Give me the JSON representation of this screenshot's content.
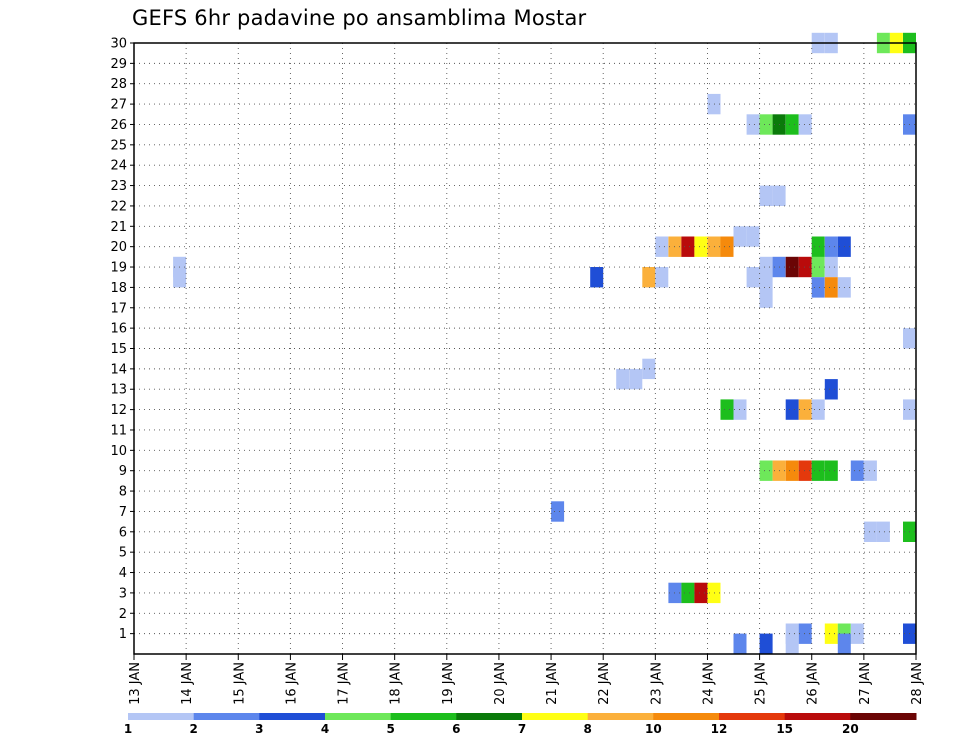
{
  "title": "GEFS 6hr padavine po ansamblima Mostar",
  "chart_data": {
    "type": "heatmap",
    "title": "GEFS 6hr padavine po ansamblima Mostar",
    "x_tick_labels": [
      "13 JAN",
      "14 JAN",
      "15 JAN",
      "16 JAN",
      "17 JAN",
      "18 JAN",
      "19 JAN",
      "20 JAN",
      "21 JAN",
      "22 JAN",
      "23 JAN",
      "24 JAN",
      "25 JAN",
      "26 JAN",
      "27 JAN",
      "28 JAN"
    ],
    "y_tick_labels": [
      "1",
      "2",
      "3",
      "4",
      "5",
      "6",
      "7",
      "8",
      "9",
      "10",
      "11",
      "12",
      "13",
      "14",
      "15",
      "16",
      "17",
      "18",
      "19",
      "20",
      "21",
      "22",
      "23",
      "24",
      "25",
      "26",
      "27",
      "28",
      "29",
      "30"
    ],
    "xlim": [
      "13 JAN 00Z",
      "28 JAN 00Z"
    ],
    "ylim": [
      0,
      30
    ],
    "grid": true,
    "time_step_hours": 6,
    "colorbar": {
      "tick_labels": [
        "1",
        "2",
        "3",
        "4",
        "5",
        "6",
        "7",
        "8",
        "10",
        "12",
        "15",
        "20"
      ],
      "bins": [
        {
          "from": 1,
          "to": 2,
          "color": "#b4c6f5"
        },
        {
          "from": 2,
          "to": 3,
          "color": "#5d86ec"
        },
        {
          "from": 3,
          "to": 4,
          "color": "#1f4ed6"
        },
        {
          "from": 4,
          "to": 5,
          "color": "#6ee85a"
        },
        {
          "from": 5,
          "to": 6,
          "color": "#1dbe1d"
        },
        {
          "from": 6,
          "to": 7,
          "color": "#0a7a0a"
        },
        {
          "from": 7,
          "to": 8,
          "color": "#ffff14"
        },
        {
          "from": 8,
          "to": 10,
          "color": "#fbb03b"
        },
        {
          "from": 10,
          "to": 12,
          "color": "#f58a0c"
        },
        {
          "from": 12,
          "to": 15,
          "color": "#e4390c"
        },
        {
          "from": 15,
          "to": 20,
          "color": "#b90b0b"
        },
        {
          "from": 20,
          "to": null,
          "color": "#6b0505"
        }
      ]
    },
    "cells": [
      {
        "t": "13 JAN 18Z",
        "member": 18.5,
        "color": "#b4c6f5"
      },
      {
        "t": "13 JAN 18Z",
        "member": 19,
        "color": "#b4c6f5"
      },
      {
        "t": "21 JAN 18Z",
        "member": 18.5,
        "color": "#1f4ed6"
      },
      {
        "t": "22 JAN 06Z",
        "member": 13.5,
        "color": "#b4c6f5"
      },
      {
        "t": "22 JAN 12Z",
        "member": 13.5,
        "color": "#b4c6f5"
      },
      {
        "t": "22 JAN 18Z",
        "member": 18.5,
        "color": "#fbb03b"
      },
      {
        "t": "23 JAN 00Z",
        "member": 18.5,
        "color": "#b4c6f5"
      },
      {
        "t": "22 JAN 18Z",
        "member": 14,
        "color": "#b4c6f5"
      },
      {
        "t": "23 JAN 00Z",
        "member": 20,
        "color": "#b4c6f5"
      },
      {
        "t": "23 JAN 06Z",
        "member": 20,
        "color": "#fbb03b"
      },
      {
        "t": "23 JAN 12Z",
        "member": 20,
        "color": "#b90b0b"
      },
      {
        "t": "23 JAN 18Z",
        "member": 20,
        "color": "#ffff14"
      },
      {
        "t": "24 JAN 00Z",
        "member": 20,
        "color": "#fbb03b"
      },
      {
        "t": "24 JAN 06Z",
        "member": 20,
        "color": "#f58a0c"
      },
      {
        "t": "24 JAN 12Z",
        "member": 20.5,
        "color": "#b4c6f5"
      },
      {
        "t": "24 JAN 18Z",
        "member": 20.5,
        "color": "#b4c6f5"
      },
      {
        "t": "24 JAN 18Z",
        "member": 18.5,
        "color": "#b4c6f5"
      },
      {
        "t": "25 JAN 00Z",
        "member": 18.5,
        "color": "#b4c6f5"
      },
      {
        "t": "25 JAN 00Z",
        "member": 17.5,
        "color": "#b4c6f5"
      },
      {
        "t": "23 JAN 06Z",
        "member": 3,
        "color": "#5d86ec"
      },
      {
        "t": "23 JAN 12Z",
        "member": 3,
        "color": "#1dbe1d"
      },
      {
        "t": "23 JAN 18Z",
        "member": 3,
        "color": "#b90b0b"
      },
      {
        "t": "24 JAN 00Z",
        "member": 3,
        "color": "#ffff14"
      },
      {
        "t": "24 JAN 00Z",
        "member": 27,
        "color": "#b4c6f5"
      },
      {
        "t": "24 JAN 06Z",
        "member": 12,
        "color": "#1dbe1d"
      },
      {
        "t": "24 JAN 12Z",
        "member": 12,
        "color": "#b4c6f5"
      },
      {
        "t": "24 JAN 18Z",
        "member": 26,
        "color": "#b4c6f5"
      },
      {
        "t": "25 JAN 00Z",
        "member": 22.5,
        "color": "#b4c6f5"
      },
      {
        "t": "25 JAN 06Z",
        "member": 22.5,
        "color": "#b4c6f5"
      },
      {
        "t": "25 JAN 00Z",
        "member": 26,
        "color": "#6ee85a"
      },
      {
        "t": "25 JAN 06Z",
        "member": 26,
        "color": "#0a7a0a"
      },
      {
        "t": "25 JAN 12Z",
        "member": 26,
        "color": "#1dbe1d"
      },
      {
        "t": "25 JAN 18Z",
        "member": 26,
        "color": "#b4c6f5"
      },
      {
        "t": "25 JAN 00Z",
        "member": 19,
        "color": "#b4c6f5"
      },
      {
        "t": "25 JAN 06Z",
        "member": 19,
        "color": "#5d86ec"
      },
      {
        "t": "25 JAN 12Z",
        "member": 19,
        "color": "#6b0505"
      },
      {
        "t": "25 JAN 18Z",
        "member": 19,
        "color": "#b90b0b"
      },
      {
        "t": "26 JAN 00Z",
        "member": 19,
        "color": "#6ee85a"
      },
      {
        "t": "26 JAN 06Z",
        "member": 19,
        "color": "#b4c6f5"
      },
      {
        "t": "26 JAN 00Z",
        "member": 20,
        "color": "#1dbe1d"
      },
      {
        "t": "26 JAN 06Z",
        "member": 20,
        "color": "#5d86ec"
      },
      {
        "t": "26 JAN 12Z",
        "member": 20,
        "color": "#1f4ed6"
      },
      {
        "t": "26 JAN 00Z",
        "member": 18,
        "color": "#5d86ec"
      },
      {
        "t": "26 JAN 06Z",
        "member": 18,
        "color": "#f58a0c"
      },
      {
        "t": "26 JAN 12Z",
        "member": 18,
        "color": "#b4c6f5"
      },
      {
        "t": "25 JAN 12Z",
        "member": 12,
        "color": "#1f4ed6"
      },
      {
        "t": "25 JAN 18Z",
        "member": 12,
        "color": "#fbb03b"
      },
      {
        "t": "26 JAN 00Z",
        "member": 12,
        "color": "#b4c6f5"
      },
      {
        "t": "26 JAN 06Z",
        "member": 13,
        "color": "#1f4ed6"
      },
      {
        "t": "25 JAN 00Z",
        "member": 9,
        "color": "#6ee85a"
      },
      {
        "t": "25 JAN 06Z",
        "member": 9,
        "color": "#fbb03b"
      },
      {
        "t": "25 JAN 12Z",
        "member": 9,
        "color": "#f58a0c"
      },
      {
        "t": "25 JAN 18Z",
        "member": 9,
        "color": "#e4390c"
      },
      {
        "t": "26 JAN 00Z",
        "member": 9,
        "color": "#1dbe1d"
      },
      {
        "t": "26 JAN 06Z",
        "member": 9,
        "color": "#1dbe1d"
      },
      {
        "t": "26 JAN 18Z",
        "member": 9,
        "color": "#5d86ec"
      },
      {
        "t": "27 JAN 00Z",
        "member": 9,
        "color": "#b4c6f5"
      },
      {
        "t": "21 JAN 00Z",
        "member": 7,
        "color": "#5d86ec"
      },
      {
        "t": "27 JAN 00Z",
        "member": 6,
        "color": "#b4c6f5"
      },
      {
        "t": "27 JAN 06Z",
        "member": 6,
        "color": "#b4c6f5"
      },
      {
        "t": "27 JAN 18Z",
        "member": 6,
        "color": "#1dbe1d"
      },
      {
        "t": "25 JAN 12Z",
        "member": 1,
        "color": "#b4c6f5"
      },
      {
        "t": "25 JAN 18Z",
        "member": 1,
        "color": "#5d86ec"
      },
      {
        "t": "26 JAN 06Z",
        "member": 1,
        "color": "#ffff14"
      },
      {
        "t": "26 JAN 12Z",
        "member": 1,
        "color": "#6ee85a"
      },
      {
        "t": "26 JAN 18Z",
        "member": 1,
        "color": "#b4c6f5"
      },
      {
        "t": "27 JAN 18Z",
        "member": 1,
        "color": "#1f4ed6"
      },
      {
        "t": "25 JAN 12Z",
        "member": 0.5,
        "color": "#b4c6f5"
      },
      {
        "t": "26 JAN 12Z",
        "member": 0.5,
        "color": "#5d86ec"
      },
      {
        "t": "24 JAN 12Z",
        "member": 0.5,
        "color": "#5d86ec"
      },
      {
        "t": "25 JAN 00Z",
        "member": 0.5,
        "color": "#1f4ed6"
      },
      {
        "t": "26 JAN 00Z",
        "member": 30,
        "color": "#b4c6f5"
      },
      {
        "t": "26 JAN 06Z",
        "member": 30,
        "color": "#b4c6f5"
      },
      {
        "t": "27 JAN 06Z",
        "member": 30,
        "color": "#6ee85a"
      },
      {
        "t": "27 JAN 12Z",
        "member": 30,
        "color": "#ffff14"
      },
      {
        "t": "27 JAN 18Z",
        "member": 30,
        "color": "#1dbe1d"
      },
      {
        "t": "27 JAN 18Z",
        "member": 26,
        "color": "#5d86ec"
      },
      {
        "t": "27 JAN 18Z",
        "member": 15.5,
        "color": "#b4c6f5"
      },
      {
        "t": "27 JAN 18Z",
        "member": 12,
        "color": "#b4c6f5"
      }
    ]
  }
}
